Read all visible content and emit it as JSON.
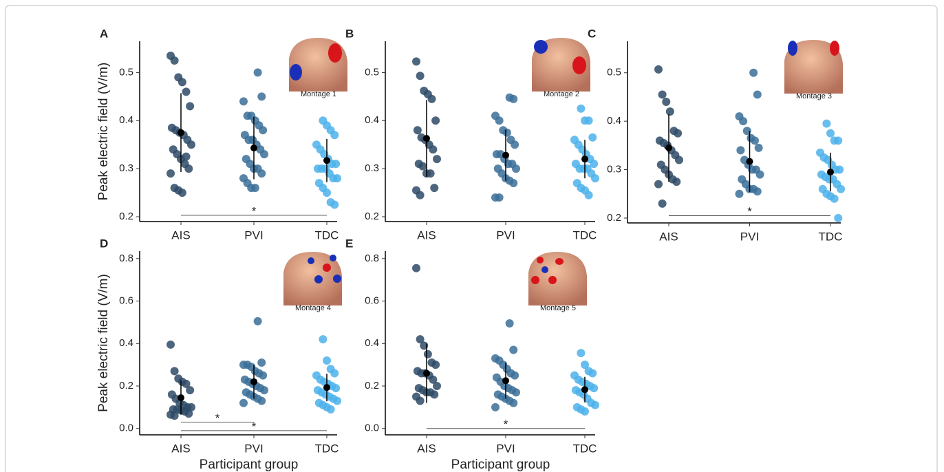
{
  "chart_data": [
    {
      "type": "strip",
      "panel": "A",
      "ylabel": "Peak electric field (V/m)",
      "image_label": "Montage 1",
      "categories": [
        "AIS",
        "PVI",
        "TDC"
      ],
      "colors": [
        "#2e4a66",
        "#3b6e98",
        "#4cb2ea"
      ],
      "values": [
        [
          0.535,
          0.525,
          0.49,
          0.48,
          0.46,
          0.43,
          0.385,
          0.38,
          0.375,
          0.37,
          0.36,
          0.35,
          0.34,
          0.33,
          0.32,
          0.31,
          0.3,
          0.29,
          0.26,
          0.255,
          0.25,
          0.325
        ],
        [
          0.5,
          0.45,
          0.44,
          0.41,
          0.41,
          0.4,
          0.39,
          0.38,
          0.37,
          0.36,
          0.36,
          0.35,
          0.34,
          0.33,
          0.32,
          0.31,
          0.3,
          0.3,
          0.29,
          0.28,
          0.27,
          0.26,
          0.26
        ],
        [
          0.4,
          0.39,
          0.38,
          0.37,
          0.35,
          0.34,
          0.33,
          0.32,
          0.31,
          0.31,
          0.3,
          0.3,
          0.3,
          0.29,
          0.28,
          0.28,
          0.27,
          0.26,
          0.25,
          0.23,
          0.225
        ]
      ],
      "means": [
        0.375,
        0.343,
        0.317
      ],
      "sds": [
        0.082,
        0.065,
        0.045
      ],
      "ylim": [
        0.19,
        0.565
      ],
      "yticks": [
        0.2,
        0.3,
        0.4,
        0.5
      ],
      "brackets": [
        {
          "from": "AIS",
          "to": "TDC",
          "y": 0.203,
          "label": "*"
        }
      ]
    },
    {
      "type": "strip",
      "panel": "B",
      "image_label": "Montage 2",
      "categories": [
        "AIS",
        "PVI",
        "TDC"
      ],
      "colors": [
        "#2e4a66",
        "#3b6e98",
        "#4cb2ea"
      ],
      "values": [
        [
          0.523,
          0.493,
          0.462,
          0.455,
          0.445,
          0.4,
          0.38,
          0.365,
          0.36,
          0.35,
          0.34,
          0.32,
          0.31,
          0.305,
          0.29,
          0.29,
          0.26,
          0.255,
          0.245
        ],
        [
          0.448,
          0.445,
          0.41,
          0.4,
          0.38,
          0.375,
          0.36,
          0.35,
          0.33,
          0.33,
          0.32,
          0.31,
          0.31,
          0.3,
          0.3,
          0.29,
          0.28,
          0.275,
          0.27,
          0.24,
          0.24
        ],
        [
          0.425,
          0.4,
          0.4,
          0.365,
          0.36,
          0.35,
          0.34,
          0.33,
          0.32,
          0.31,
          0.31,
          0.3,
          0.3,
          0.3,
          0.29,
          0.28,
          0.27,
          0.26,
          0.255,
          0.245
        ]
      ],
      "means": [
        0.363,
        0.328,
        0.32
      ],
      "sds": [
        0.08,
        0.053,
        0.04
      ],
      "ylim": [
        0.19,
        0.565
      ],
      "yticks": [
        0.2,
        0.3,
        0.4,
        0.5
      ],
      "brackets": []
    },
    {
      "type": "strip",
      "panel": "C",
      "image_label": "Montage 3",
      "categories": [
        "AIS",
        "PVI",
        "TDC"
      ],
      "colors": [
        "#2e4a66",
        "#3b6e98",
        "#4cb2ea"
      ],
      "values": [
        [
          0.507,
          0.455,
          0.44,
          0.42,
          0.38,
          0.375,
          0.36,
          0.355,
          0.35,
          0.34,
          0.33,
          0.32,
          0.31,
          0.3,
          0.29,
          0.28,
          0.275,
          0.27,
          0.23
        ],
        [
          0.5,
          0.455,
          0.41,
          0.4,
          0.38,
          0.365,
          0.36,
          0.345,
          0.34,
          0.32,
          0.31,
          0.3,
          0.3,
          0.29,
          0.28,
          0.27,
          0.26,
          0.26,
          0.255,
          0.25
        ],
        [
          0.395,
          0.375,
          0.36,
          0.36,
          0.335,
          0.325,
          0.32,
          0.31,
          0.3,
          0.3,
          0.29,
          0.285,
          0.28,
          0.28,
          0.27,
          0.26,
          0.26,
          0.25,
          0.245,
          0.24,
          0.2
        ]
      ],
      "means": [
        0.345,
        0.317,
        0.295
      ],
      "sds": [
        0.07,
        0.063,
        0.04
      ],
      "ylim": [
        0.19,
        0.565
      ],
      "yticks": [
        0.2,
        0.3,
        0.4,
        0.5
      ],
      "brackets": [
        {
          "from": "AIS",
          "to": "TDC",
          "y": 0.205,
          "label": "*"
        }
      ]
    },
    {
      "type": "strip",
      "panel": "D",
      "ylabel": "Peak electric field (V/m)",
      "xlabel": "Participant group",
      "image_label": "Montage 4",
      "categories": [
        "AIS",
        "PVI",
        "TDC"
      ],
      "colors": [
        "#2e4a66",
        "#3b6e98",
        "#4cb2ea"
      ],
      "values": [
        [
          0.395,
          0.27,
          0.235,
          0.22,
          0.21,
          0.18,
          0.16,
          0.14,
          0.12,
          0.11,
          0.1,
          0.1,
          0.09,
          0.09,
          0.085,
          0.08,
          0.07,
          0.065,
          0.06
        ],
        [
          0.505,
          0.31,
          0.3,
          0.3,
          0.29,
          0.27,
          0.26,
          0.25,
          0.23,
          0.22,
          0.21,
          0.2,
          0.19,
          0.18,
          0.17,
          0.16,
          0.15,
          0.14,
          0.13,
          0.12
        ],
        [
          0.42,
          0.32,
          0.28,
          0.26,
          0.25,
          0.23,
          0.22,
          0.21,
          0.2,
          0.19,
          0.18,
          0.17,
          0.16,
          0.15,
          0.14,
          0.13,
          0.12,
          0.11,
          0.1,
          0.09
        ]
      ],
      "means": [
        0.145,
        0.22,
        0.193
      ],
      "sds": [
        0.08,
        0.08,
        0.065
      ],
      "ylim": [
        -0.03,
        0.835
      ],
      "yticks": [
        {
          "value": 0,
          "label": "0.0"
        },
        0.2,
        0.4,
        0.6,
        0.8
      ],
      "brackets": [
        {
          "from": "AIS",
          "to": "PVI",
          "y": 0.03,
          "label": "*"
        },
        {
          "from": "AIS",
          "to": "TDC",
          "y": -0.01,
          "label": "*"
        }
      ]
    },
    {
      "type": "strip",
      "panel": "E",
      "xlabel": "Participant group",
      "image_label": "Montage 5",
      "categories": [
        "AIS",
        "PVI",
        "TDC"
      ],
      "colors": [
        "#2e4a66",
        "#3b6e98",
        "#4cb2ea"
      ],
      "values": [
        [
          0.755,
          0.42,
          0.39,
          0.35,
          0.31,
          0.3,
          0.27,
          0.26,
          0.26,
          0.25,
          0.23,
          0.2,
          0.19,
          0.18,
          0.17,
          0.17,
          0.16,
          0.15,
          0.13
        ],
        [
          0.495,
          0.37,
          0.33,
          0.32,
          0.3,
          0.28,
          0.26,
          0.25,
          0.24,
          0.22,
          0.2,
          0.19,
          0.18,
          0.17,
          0.16,
          0.15,
          0.14,
          0.13,
          0.12,
          0.1
        ],
        [
          0.355,
          0.3,
          0.27,
          0.26,
          0.25,
          0.23,
          0.22,
          0.21,
          0.2,
          0.19,
          0.18,
          0.17,
          0.16,
          0.14,
          0.12,
          0.11,
          0.1,
          0.09,
          0.08
        ]
      ],
      "means": [
        0.26,
        0.225,
        0.183
      ],
      "sds": [
        0.14,
        0.085,
        0.06
      ],
      "ylim": [
        -0.03,
        0.835
      ],
      "yticks": [
        {
          "value": 0,
          "label": "0.0"
        },
        0.2,
        0.4,
        0.6,
        0.8
      ],
      "brackets": [
        {
          "from": "AIS",
          "to": "TDC",
          "y": 0.0,
          "label": "*"
        }
      ]
    }
  ]
}
